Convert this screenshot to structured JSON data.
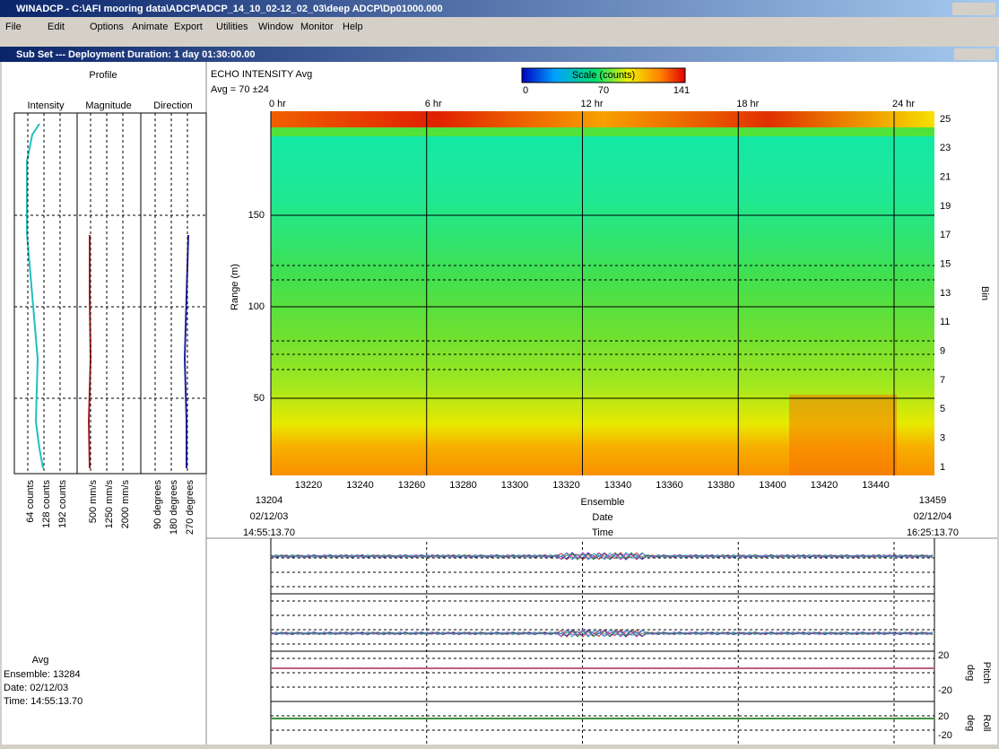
{
  "window": {
    "title": "WINADCP - C:\\AFI mooring data\\ADCP\\ADCP_14_10_02-12_02_03\\deep ADCP\\Dp01000.000",
    "menu": [
      "File",
      "Edit",
      "Options",
      "Animate",
      "Export",
      "Utilities",
      "Window",
      "Monitor",
      "Help"
    ]
  },
  "subwindow": {
    "title": "Sub Set --- Deployment Duration: 1 day 01:30:00.00"
  },
  "profile": {
    "title": "Profile",
    "columns": [
      {
        "name": "Intensity",
        "scale": [
          "64 counts",
          "128 counts",
          "192 counts"
        ]
      },
      {
        "name": "Magnitude",
        "scale": [
          "500 mm/s",
          "1250 mm/s",
          "2000 mm/s"
        ]
      },
      {
        "name": "Direction",
        "scale": [
          "90 degrees",
          "180 degrees",
          "270 degrees"
        ]
      }
    ],
    "info": {
      "label": "Avg",
      "rows": [
        "Ensemble: 13284",
        "Date:   02/12/03",
        "Time:   14:55:13.70"
      ]
    }
  },
  "plot": {
    "title": "ECHO INTENSITY Avg",
    "subtitle": "Avg = 70 ±24",
    "scale": {
      "label": "Scale (counts)",
      "ticks": [
        "0",
        "70",
        "141"
      ]
    },
    "hours": [
      "0 hr",
      "6 hr",
      "12 hr",
      "18 hr",
      "24 hr"
    ],
    "range_label": "Range (m)",
    "range_ticks": [
      "150",
      "100",
      "50"
    ],
    "bin_label": "Bin",
    "bins": [
      "25",
      "23",
      "21",
      "19",
      "17",
      "15",
      "13",
      "11",
      "9",
      "7",
      "5",
      "3",
      "1"
    ],
    "ensemble_ticks": [
      "13220",
      "13240",
      "13260",
      "13280",
      "13300",
      "13320",
      "13340",
      "13360",
      "13380",
      "13400",
      "13420",
      "13440"
    ],
    "x_labels": [
      "Ensemble",
      "Date",
      "Time"
    ],
    "start": [
      "13204",
      "02/12/03",
      "14:55:13.70"
    ],
    "end": [
      "13459",
      "02/12/04",
      "16:25:13.70"
    ]
  },
  "lower": {
    "pitch": {
      "label": "Pitch",
      "unit": "deg",
      "ticks": [
        "20",
        "-20"
      ]
    },
    "roll": {
      "label": "Roll",
      "unit": "deg",
      "ticks": [
        "20",
        "-20"
      ]
    }
  }
}
